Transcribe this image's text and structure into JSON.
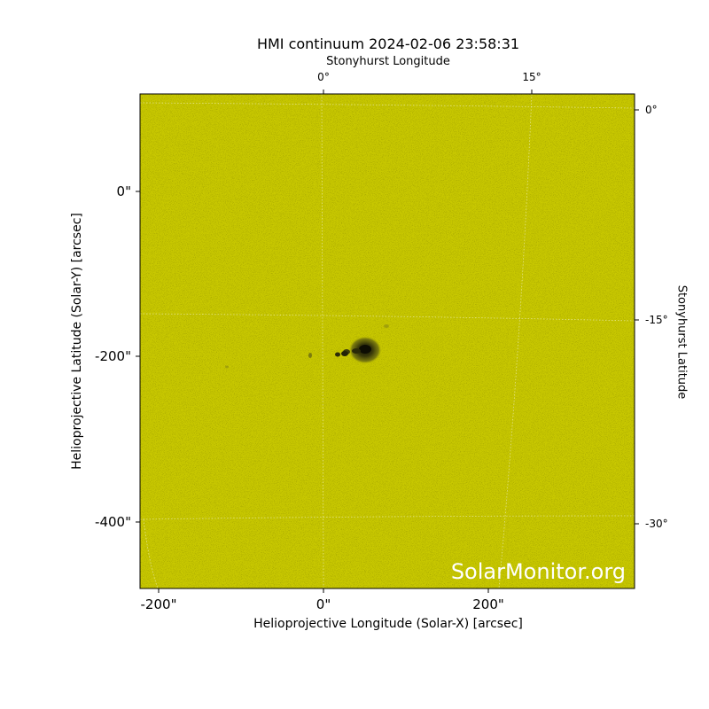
{
  "title": "HMI continuum 2024-02-06 23:58:31",
  "top_axis_label": "Stonyhurst Longitude",
  "right_axis_label": "Stonyhurst Latitude",
  "xlabel": "Helioprojective Longitude (Solar-X) [arcsec]",
  "ylabel": "Helioprojective Latitude (Solar-Y) [arcsec]",
  "watermark": "SolarMonitor.org",
  "top_ticks": [
    "0°",
    "15°"
  ],
  "bottom_ticks": [
    "-200\"",
    "0\"",
    "200\""
  ],
  "left_ticks": [
    "0\"",
    "-200\"",
    "-400\""
  ],
  "right_ticks": [
    "0°",
    "-15°",
    "-30°"
  ],
  "colors": {
    "background": "#c8c800",
    "grid": "#ffffff",
    "sunspot": "#1a1a05"
  }
}
